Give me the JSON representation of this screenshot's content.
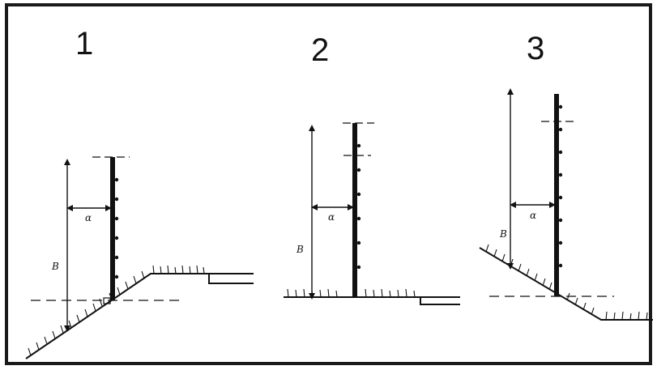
{
  "panels": [
    {
      "number": "1",
      "distance_label": "α",
      "height_label": "B"
    },
    {
      "number": "2",
      "distance_label": "α",
      "height_label": "B"
    },
    {
      "number": "3",
      "distance_label": "α",
      "height_label": "B"
    }
  ],
  "colors": {
    "ink": "#111111",
    "frame": "#1a1a1a",
    "background": "#ffffff"
  }
}
